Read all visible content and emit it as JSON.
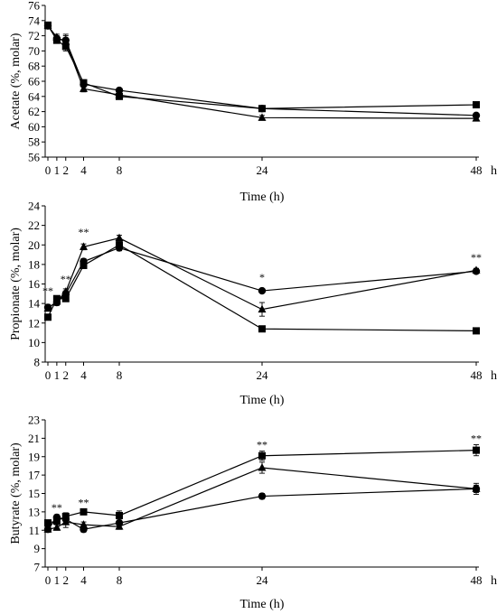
{
  "chart_data": [
    {
      "type": "line",
      "ylabel": "Acetate (%, molar)",
      "xlabel": "Time (h)",
      "x_unit": "h",
      "x": [
        0,
        1,
        2,
        4,
        8,
        24,
        48
      ],
      "x_tick_labels": [
        "0",
        "1",
        "2",
        "4",
        "8",
        "24",
        "48"
      ],
      "ylim": [
        56,
        76
      ],
      "yticks": [
        56,
        58,
        60,
        62,
        64,
        66,
        68,
        70,
        72,
        74,
        76
      ],
      "grid": false,
      "series": [
        {
          "marker": "square",
          "values": [
            73.4,
            71.4,
            70.6,
            65.8,
            64.0,
            62.4,
            62.9
          ],
          "err": [
            0.4,
            0.4,
            0.6,
            0.4,
            0.3,
            0.3,
            0.2
          ]
        },
        {
          "marker": "triangle",
          "values": [
            73.3,
            71.8,
            71.2,
            65.0,
            64.2,
            61.2,
            61.1
          ],
          "err": [
            0.4,
            0.4,
            0.8,
            0.4,
            0.3,
            0.3,
            0.2
          ]
        },
        {
          "marker": "circle",
          "values": [
            73.3,
            71.6,
            71.4,
            65.6,
            64.8,
            62.4,
            61.5
          ],
          "err": [
            0.4,
            0.4,
            0.8,
            0.4,
            0.3,
            0.3,
            0.2
          ]
        }
      ],
      "annotations": []
    },
    {
      "type": "line",
      "ylabel": "Propionate (%, molar)",
      "xlabel": "Time (h)",
      "x_unit": "h",
      "x": [
        0,
        1,
        2,
        4,
        8,
        24,
        48
      ],
      "x_tick_labels": [
        "0",
        "1",
        "2",
        "4",
        "8",
        "24",
        "48"
      ],
      "ylim": [
        8,
        24
      ],
      "yticks": [
        8,
        10,
        12,
        14,
        16,
        18,
        20,
        22,
        24
      ],
      "grid": false,
      "series": [
        {
          "marker": "square",
          "values": [
            12.6,
            14.5,
            14.5,
            17.9,
            20.0,
            11.4,
            11.2
          ],
          "err": [
            0.3,
            0.3,
            0.3,
            0.3,
            0.3,
            0.2,
            0.2
          ]
        },
        {
          "marker": "triangle",
          "values": [
            13.5,
            14.2,
            15.2,
            19.8,
            20.7,
            13.4,
            17.4
          ],
          "err": [
            0.3,
            0.3,
            0.3,
            0.3,
            0.3,
            0.7,
            0.2
          ]
        },
        {
          "marker": "circle",
          "values": [
            13.6,
            14.1,
            15.0,
            18.3,
            19.7,
            15.3,
            17.3
          ],
          "err": [
            0.3,
            0.3,
            0.3,
            0.3,
            0.3,
            0.2,
            0.2
          ]
        }
      ],
      "annotations": [
        {
          "x": 0,
          "y": 15.4,
          "text": "**"
        },
        {
          "x": 2,
          "y": 16.6,
          "text": "**"
        },
        {
          "x": 4,
          "y": 21.4,
          "text": "**"
        },
        {
          "x": 24,
          "y": 16.8,
          "text": "*"
        },
        {
          "x": 48,
          "y": 18.8,
          "text": "**"
        }
      ]
    },
    {
      "type": "line",
      "ylabel": "Butyrate (%, molar)",
      "xlabel": "Time (h)",
      "x_unit": "h",
      "x": [
        0,
        1,
        2,
        4,
        8,
        24,
        48
      ],
      "x_tick_labels": [
        "0",
        "1",
        "2",
        "4",
        "8",
        "24",
        "48"
      ],
      "ylim": [
        7,
        23
      ],
      "yticks": [
        7,
        9,
        11,
        13,
        15,
        17,
        19,
        21,
        23
      ],
      "grid": false,
      "series": [
        {
          "marker": "square",
          "values": [
            11.8,
            12.0,
            12.5,
            13.0,
            12.6,
            19.1,
            19.7
          ],
          "err": [
            0.3,
            0.3,
            0.4,
            0.3,
            0.5,
            0.5,
            0.6
          ]
        },
        {
          "marker": "triangle",
          "values": [
            11.1,
            11.3,
            11.9,
            11.6,
            11.4,
            17.8,
            15.5
          ],
          "err": [
            0.3,
            0.3,
            0.6,
            0.3,
            0.3,
            0.6,
            0.4
          ]
        },
        {
          "marker": "circle",
          "values": [
            11.1,
            12.4,
            12.2,
            11.1,
            11.8,
            14.7,
            15.5
          ],
          "err": [
            0.3,
            0.3,
            0.6,
            0.3,
            0.3,
            0.3,
            0.6
          ]
        }
      ],
      "annotations": [
        {
          "x": 1,
          "y": 13.6,
          "text": "**"
        },
        {
          "x": 4,
          "y": 14.1,
          "text": "**"
        },
        {
          "x": 24,
          "y": 20.4,
          "text": "**"
        },
        {
          "x": 48,
          "y": 21.1,
          "text": "**"
        }
      ]
    }
  ]
}
